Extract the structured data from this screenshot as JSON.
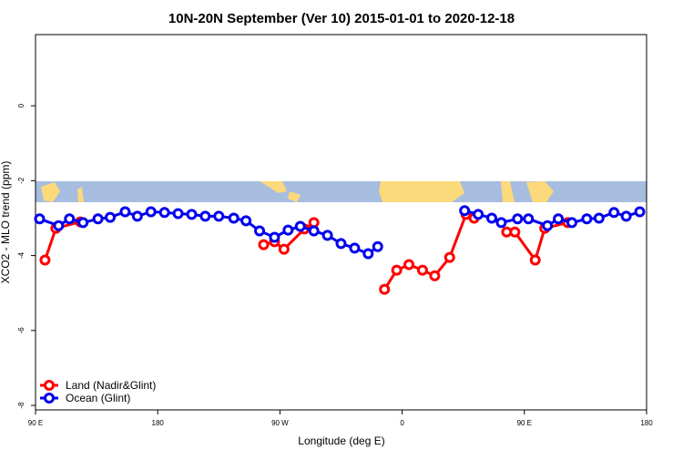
{
  "chart_data": {
    "type": "line",
    "title": "10N-20N September (Ver 10)   2015-01-01 to 2020-12-18",
    "x_label": "Longitude (deg E)",
    "y_label": "XCO2 - MLO trend (ppm)",
    "xlim": [
      90,
      540
    ],
    "xticks": [
      {
        "value": 90,
        "label": "90 E"
      },
      180,
      {
        "value": 270,
        "label": "90 W"
      },
      {
        "value": 360,
        "label": "0"
      },
      {
        "value": 450,
        "label": "90 E"
      },
      {
        "value": 540,
        "label": "180"
      }
    ],
    "ylim": [
      -8.12,
      1.9
    ],
    "yticks": [
      0,
      -2,
      -4,
      -6,
      -8
    ],
    "legend": "bottom-left",
    "series": [
      {
        "name": "Land (Nadir&Glint)",
        "color": "#ff0000",
        "x": [
          97,
          105,
          123,
          null,
          258,
          266,
          273,
          288,
          295,
          null,
          347,
          356,
          365,
          375,
          384,
          395,
          407,
          413,
          null,
          437,
          443,
          458,
          465,
          482
        ],
        "values": [
          -4.12,
          -3.27,
          -3.1,
          null,
          -3.71,
          -3.63,
          -3.83,
          -3.29,
          -3.12,
          null,
          -4.9,
          -4.39,
          -4.24,
          -4.39,
          -4.54,
          -4.05,
          -2.9,
          -3.0,
          null,
          -3.37,
          -3.37,
          -4.12,
          -3.27,
          -3.12
        ]
      },
      {
        "name": "Ocean (Glint)",
        "color": "#0000ee",
        "x": [
          93,
          107,
          115,
          125,
          136,
          145,
          156,
          165,
          175,
          185,
          195,
          205,
          215,
          225,
          236,
          245,
          255,
          266,
          276,
          285,
          295,
          305,
          315,
          325,
          335,
          342,
          null,
          406,
          416,
          426,
          433,
          445,
          453,
          467,
          475,
          485,
          496,
          505,
          516,
          525,
          535
        ],
        "values": [
          -3.02,
          -3.2,
          -3.02,
          -3.12,
          -3.02,
          -2.98,
          -2.83,
          -2.95,
          -2.83,
          -2.85,
          -2.88,
          -2.9,
          -2.95,
          -2.95,
          -3.0,
          -3.07,
          -3.34,
          -3.51,
          -3.32,
          -3.22,
          -3.34,
          -3.46,
          -3.68,
          -3.8,
          -3.95,
          -3.76,
          null,
          -2.8,
          -2.9,
          -3.0,
          -3.12,
          -3.02,
          -3.02,
          -3.2,
          -3.02,
          -3.12,
          -3.02,
          -3.0,
          -2.85,
          -2.95,
          -2.83
        ]
      }
    ]
  }
}
